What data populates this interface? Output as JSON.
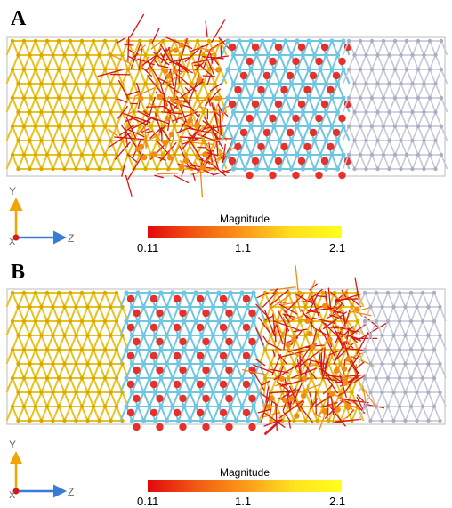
{
  "panels": [
    {
      "label": "A",
      "colorbar": {
        "title": "Magnitude",
        "min": "0.11",
        "mid": "1.1",
        "max": "2.1"
      },
      "axes": {
        "vertical": "Y",
        "out_of_plane": "X",
        "horizontal": "Z"
      },
      "highlighted_region": "second"
    },
    {
      "label": "B",
      "colorbar": {
        "title": "Magnitude",
        "min": "0.11",
        "mid": "1.1",
        "max": "2.1"
      },
      "axes": {
        "vertical": "Y",
        "out_of_plane": "X",
        "horizontal": "Z"
      },
      "highlighted_region": "fourth"
    }
  ],
  "colors": {
    "yellow_region": "#e8c21e",
    "cyan_bonds": "#6ec6e0",
    "oxygen_red": "#e8302a",
    "grey_region": "#c4c8d6",
    "arrow_red": "#d8161a",
    "arrow_orange": "#f28a14",
    "axis_y": "#f0a500",
    "axis_z": "#3a7bd5",
    "axis_x": "#d01c1c"
  }
}
